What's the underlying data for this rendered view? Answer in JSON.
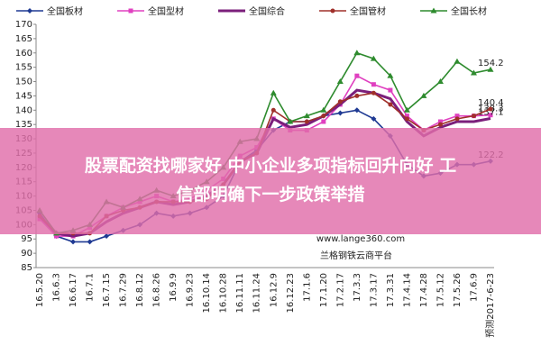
{
  "chart_data": {
    "type": "line",
    "categories": [
      "16.5.20",
      "16.6.3",
      "16.6.17",
      "16.7.1",
      "16.7.15",
      "16.7.29",
      "16.8.12",
      "16.8.26",
      "16.9.9",
      "16.9.23",
      "16.10.14",
      "16.10.28",
      "16.11.11",
      "16.11.24",
      "16.12.9",
      "16.12.23",
      "17.1.6",
      "17.1.20",
      "17.2.17",
      "17.3.3",
      "17.3.17",
      "17.3.31",
      "17.4.14",
      "17.4.28",
      "17.5.12",
      "17.5.26",
      "17.6.9",
      "预测2017-6-23"
    ],
    "series": [
      {
        "name": "全国板材",
        "color": "#1f3a93",
        "marker": "diamond",
        "values": [
          104,
          96,
          94,
          94,
          96,
          98,
          100,
          104,
          103,
          104,
          106,
          110,
          122,
          126,
          133,
          136,
          136,
          138,
          139,
          140,
          137,
          131,
          121,
          117,
          118,
          121,
          121,
          122.2
        ]
      },
      {
        "name": "全国型材",
        "color": "#e040c0",
        "marker": "square",
        "values": [
          102,
          96,
          96,
          99,
          103,
          106,
          108,
          110,
          108,
          109,
          112,
          116,
          124,
          127,
          137,
          133,
          133,
          136,
          142,
          152,
          149,
          147,
          138,
          133,
          136,
          138,
          138,
          138.3
        ]
      },
      {
        "name": "全国综合",
        "color": "#7b1f7b",
        "marker": "none",
        "values": [
          103,
          97,
          96,
          97,
          101,
          104,
          106,
          108,
          107,
          108,
          110,
          114,
          122,
          125,
          137,
          134,
          135,
          138,
          142,
          147,
          146,
          144,
          136,
          131,
          134,
          136,
          136,
          137.1
        ]
      },
      {
        "name": "全国管材",
        "color": "#a0302a",
        "marker": "circle",
        "values": [
          103,
          97,
          97,
          97,
          103,
          105,
          106,
          108,
          108,
          108,
          109,
          114,
          122,
          125,
          140,
          136,
          136,
          138,
          143,
          145,
          146,
          142,
          137,
          133,
          135,
          137,
          138,
          140.4
        ]
      },
      {
        "name": "全国长材",
        "color": "#2e8b2e",
        "marker": "triangle",
        "values": [
          105,
          97,
          98,
          100,
          108,
          106,
          109,
          112,
          110,
          112,
          115,
          120,
          129,
          130,
          146,
          136,
          138,
          140,
          150,
          160,
          158,
          152,
          140,
          145,
          150,
          157,
          153,
          154.2
        ]
      }
    ],
    "ylim": [
      85,
      170
    ],
    "yticks": [
      85,
      90,
      95,
      100,
      105,
      110,
      115,
      120,
      125,
      130,
      135,
      140,
      145,
      150,
      155,
      160,
      165,
      170
    ],
    "grid": false,
    "legend": "top",
    "watermark": "www.lange360.com",
    "source": "兰格钢铁云商平台",
    "overlay_text": [
      "股票配资找哪家好 中小企业多项指标回升向好 工",
      "信部明确下一步政策举措"
    ]
  }
}
